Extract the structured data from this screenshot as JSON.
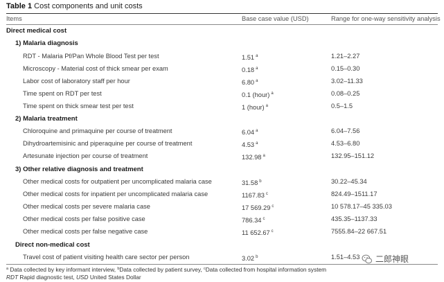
{
  "table": {
    "label": "Table 1",
    "title": "Cost components and unit costs",
    "headers": [
      "Items",
      "Base case value (USD)",
      "Range for one-way sensitivity analysis"
    ],
    "sections": [
      {
        "title": "Direct medical cost"
      },
      {
        "title": "1) Malaria diagnosis"
      },
      {
        "title": "2) Malaria treatment"
      },
      {
        "title": "3) Other relative diagnosis and treatment"
      },
      {
        "title": "Direct non-medical cost"
      }
    ],
    "rows": [
      {
        "item": "RDT - Malaria Pf/Pan Whole Blood Test per test",
        "value": "1.51",
        "sup": "a",
        "range": "1.21–2.27"
      },
      {
        "item": "Microscopy - Material cost of thick smear per exam",
        "value": "0.18",
        "sup": "a",
        "range": "0.15–0.30"
      },
      {
        "item": "Labor cost of laboratory staff per hour",
        "value": "6.80",
        "sup": "a",
        "range": "3.02–11.33"
      },
      {
        "item": "Time spent on RDT per test",
        "value": "0.1 (hour)",
        "sup": "a",
        "range": "0.08–0.25"
      },
      {
        "item": "Time spent on thick smear test per test",
        "value": "1 (hour)",
        "sup": "a",
        "range": "0.5–1.5"
      },
      {
        "item": "Chloroquine and primaquine per course of treatment",
        "value": "6.04",
        "sup": "a",
        "range": "6.04–7.56"
      },
      {
        "item": "Dihydroartemisinic and piperaquine per course of treatment",
        "value": "4.53",
        "sup": "a",
        "range": "4.53–6.80"
      },
      {
        "item": "Artesunate injection per course of treatment",
        "value": "132.98",
        "sup": "a",
        "range": "132.95–151.12"
      },
      {
        "item": "Other medical costs for outpatient per uncomplicated malaria case",
        "value": "31.58",
        "sup": "b",
        "range": "30.22–45.34"
      },
      {
        "item": "Other medical costs for inpatient per uncomplicated malaria case",
        "value": "1167.83",
        "sup": "c",
        "range": "824.49–1511.17"
      },
      {
        "item": "Other medical costs per severe malaria case",
        "value": "17 569.29",
        "sup": "c",
        "range": "10 578.17–45 335.03"
      },
      {
        "item": "Other medical costs per false positive case",
        "value": "786.34",
        "sup": "c",
        "range": "435.35–1137.33"
      },
      {
        "item": "Other medical costs per false negative case",
        "value": "11 652.67",
        "sup": "c",
        "range": "7555.84–22 667.51"
      },
      {
        "item": "Travel cost of patient visiting health care sector per person",
        "value": "3.02",
        "sup": "b",
        "range": "1.51–4.53"
      }
    ],
    "footnote1": {
      "a_sup": "a",
      "a_text": " Data collected by key informant interview, ",
      "b_sup": "b",
      "b_text": "Data collected by patient survey, ",
      "c_sup": "c",
      "c_text": "Data collected from hospital information system"
    },
    "footnote2": {
      "abbr1": "RDT",
      "abbr1_text": " Rapid diagnostic test, ",
      "abbr2": "USD",
      "abbr2_text": " United States Dollar"
    }
  },
  "watermark": {
    "text": "二郎神眼",
    "icon": "wechat-logo-icon"
  }
}
